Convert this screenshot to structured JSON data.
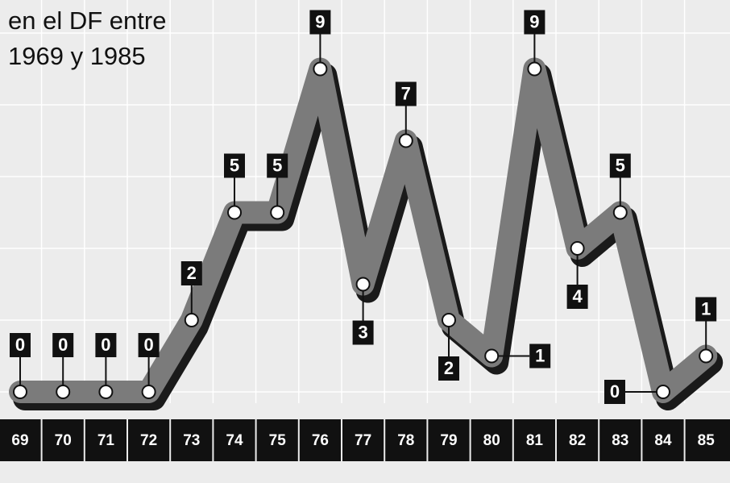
{
  "chart_data": {
    "type": "line",
    "title_lines": [
      "en el DF entre",
      "1969 y 1985"
    ],
    "categories": [
      "69",
      "70",
      "71",
      "72",
      "73",
      "74",
      "75",
      "76",
      "77",
      "78",
      "79",
      "80",
      "81",
      "82",
      "83",
      "84",
      "85"
    ],
    "values": [
      0,
      0,
      0,
      0,
      2,
      5,
      5,
      9,
      3,
      7,
      2,
      1,
      9,
      4,
      5,
      0,
      1
    ],
    "color": "#7b7b7b",
    "ylim": [
      0,
      10
    ],
    "yticks": [
      0,
      2,
      4,
      6,
      8,
      10
    ],
    "grid": true
  }
}
